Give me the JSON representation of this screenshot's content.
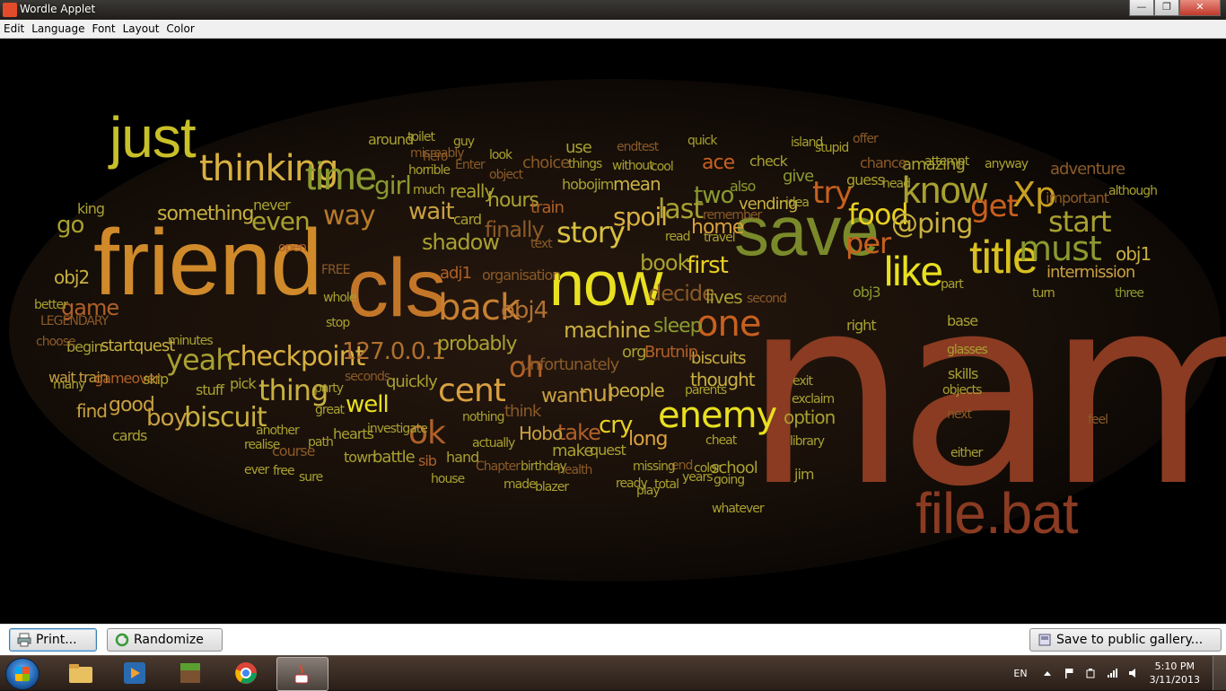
{
  "window": {
    "title": "Wordle Applet",
    "min_label": "—",
    "max_label": "❐",
    "close_label": "✕"
  },
  "menu": [
    "Edit",
    "Language",
    "Font",
    "Layout",
    "Color"
  ],
  "cloud": {
    "words": [
      {
        "text": "name",
        "color": "#8a3b22"
      },
      {
        "text": "friend",
        "color": "#d08a2a"
      },
      {
        "text": "cls",
        "color": "#c47628"
      },
      {
        "text": "now",
        "color": "#e8e020"
      },
      {
        "text": "save",
        "color": "#7a8a2a"
      },
      {
        "text": "just",
        "color": "#c8c028"
      },
      {
        "text": "file.bat",
        "color": "#8a3b22"
      },
      {
        "text": "title",
        "color": "#d8c020"
      },
      {
        "text": "thinking",
        "color": "#d8b040"
      },
      {
        "text": "time",
        "color": "#8a9a30"
      },
      {
        "text": "like",
        "color": "#e8e020"
      },
      {
        "text": "know",
        "color": "#a8a030"
      },
      {
        "text": "back",
        "color": "#c88030"
      },
      {
        "text": "enemy",
        "color": "#e8e020"
      },
      {
        "text": "one",
        "color": "#c8601e"
      },
      {
        "text": "Xp",
        "color": "#c8a020"
      },
      {
        "text": "story",
        "color": "#d8c040"
      },
      {
        "text": "must",
        "color": "#8a9a30"
      },
      {
        "text": "cent",
        "color": "#d8a040"
      },
      {
        "text": "food",
        "color": "#e8d020"
      },
      {
        "text": "checkpoint",
        "color": "#d8b040"
      },
      {
        "text": "thing",
        "color": "#c8b040"
      },
      {
        "text": "yeah",
        "color": "#a8a030"
      },
      {
        "text": "way",
        "color": "#b87a2a"
      },
      {
        "text": "127.0.0.1",
        "color": "#b07030"
      },
      {
        "text": "biscuit",
        "color": "#c8b040"
      },
      {
        "text": "boy",
        "color": "#c8a040"
      },
      {
        "text": "go",
        "color": "#a8a030"
      },
      {
        "text": "game",
        "color": "#b06028"
      },
      {
        "text": "something",
        "color": "#c8b040"
      },
      {
        "text": "even",
        "color": "#a8a030"
      },
      {
        "text": "girl",
        "color": "#8a9a30"
      },
      {
        "text": "wait",
        "color": "#c8a040"
      },
      {
        "text": "shadow",
        "color": "#a8a030"
      },
      {
        "text": "obj4",
        "color": "#b07030"
      },
      {
        "text": "oh",
        "color": "#b06028"
      },
      {
        "text": "probably",
        "color": "#a8a030"
      },
      {
        "text": "machine",
        "color": "#c8b040"
      },
      {
        "text": "spoil",
        "color": "#d8b040"
      },
      {
        "text": "last",
        "color": "#a8a030"
      },
      {
        "text": "book",
        "color": "#a8a030"
      },
      {
        "text": "first",
        "color": "#e8d020"
      },
      {
        "text": "home",
        "color": "#d8a040"
      },
      {
        "text": "try",
        "color": "#c8601e"
      },
      {
        "text": "per",
        "color": "#c8601e"
      },
      {
        "text": "@ping",
        "color": "#c8b040"
      },
      {
        "text": "get",
        "color": "#c8601e"
      },
      {
        "text": "start",
        "color": "#a8a030"
      },
      {
        "text": "adventure",
        "color": "#8a5a28"
      },
      {
        "text": "intermission",
        "color": "#c8a040"
      },
      {
        "text": "obj1",
        "color": "#c8b040"
      },
      {
        "text": "obj2",
        "color": "#c8b040"
      },
      {
        "text": "well",
        "color": "#e8e020"
      },
      {
        "text": "ok",
        "color": "#b06028"
      },
      {
        "text": "cry",
        "color": "#e8d020"
      },
      {
        "text": "people",
        "color": "#c8b040"
      },
      {
        "text": "nul",
        "color": "#c8a040"
      },
      {
        "text": "want",
        "color": "#c8a040"
      },
      {
        "text": "take",
        "color": "#b06028"
      },
      {
        "text": "long",
        "color": "#d8a040"
      },
      {
        "text": "Hobo",
        "color": "#c8a040"
      },
      {
        "text": "find",
        "color": "#c8a040"
      },
      {
        "text": "good",
        "color": "#c8a040"
      },
      {
        "text": "hours",
        "color": "#a8a030"
      },
      {
        "text": "finally",
        "color": "#8a5a28"
      },
      {
        "text": "decide",
        "color": "#8a5a28"
      },
      {
        "text": "lives",
        "color": "#a8a030"
      },
      {
        "text": "sleep",
        "color": "#8a9a30"
      },
      {
        "text": "biscuits",
        "color": "#c8b040"
      },
      {
        "text": "thought",
        "color": "#c8b040"
      },
      {
        "text": "option",
        "color": "#a8a030"
      },
      {
        "text": "mean",
        "color": "#c8b040"
      },
      {
        "text": "two",
        "color": "#8a9a30"
      },
      {
        "text": "ace",
        "color": "#c8601e"
      },
      {
        "text": "vending",
        "color": "#c8b040"
      },
      {
        "text": "give",
        "color": "#8a9a30"
      },
      {
        "text": "really",
        "color": "#a8a030"
      },
      {
        "text": "train",
        "color": "#b06028"
      },
      {
        "text": "choice",
        "color": "#8a5a28"
      },
      {
        "text": "amazing",
        "color": "#a8a030"
      },
      {
        "text": "around",
        "color": "#a8a030"
      },
      {
        "text": "wait train",
        "color": "#c8a040"
      },
      {
        "text": "gameover",
        "color": "#b06028"
      },
      {
        "text": "skip",
        "color": "#a8a030"
      },
      {
        "text": "stuff",
        "color": "#a8a030"
      },
      {
        "text": "pick",
        "color": "#a8a030"
      },
      {
        "text": "begin",
        "color": "#a8a030"
      },
      {
        "text": "startquest",
        "color": "#c8b040"
      },
      {
        "text": "cards",
        "color": "#a8a030"
      },
      {
        "text": "quickly",
        "color": "#a8a030"
      },
      {
        "text": "investigate",
        "color": "#a8a030"
      },
      {
        "text": "battle",
        "color": "#a8a030"
      },
      {
        "text": "town",
        "color": "#a8a030"
      },
      {
        "text": "hearts",
        "color": "#a8a030"
      },
      {
        "text": "unfortunately",
        "color": "#8a5a28"
      },
      {
        "text": "org",
        "color": "#a8a030"
      },
      {
        "text": "Brutnip",
        "color": "#b06028"
      },
      {
        "text": "make",
        "color": "#a8a030"
      },
      {
        "text": "quest",
        "color": "#a8a030"
      },
      {
        "text": "school",
        "color": "#a8a030"
      },
      {
        "text": "jim",
        "color": "#a8a030"
      },
      {
        "text": "base",
        "color": "#a8a030"
      },
      {
        "text": "skills",
        "color": "#a8a030"
      },
      {
        "text": "right",
        "color": "#a8a030"
      },
      {
        "text": "three",
        "color": "#8a9a30"
      },
      {
        "text": "turn",
        "color": "#a8a030"
      },
      {
        "text": "guess",
        "color": "#a8a030"
      },
      {
        "text": "chance",
        "color": "#8a5a28"
      },
      {
        "text": "obj3",
        "color": "#8a9a30"
      },
      {
        "text": "also",
        "color": "#8a9a30"
      },
      {
        "text": "check",
        "color": "#a8a030"
      },
      {
        "text": "card",
        "color": "#a8a030"
      },
      {
        "text": "adj1",
        "color": "#b06028"
      },
      {
        "text": "hobojim",
        "color": "#a8a030"
      },
      {
        "text": "organisation",
        "color": "#8a5a28"
      },
      {
        "text": "never",
        "color": "#a8a030"
      },
      {
        "text": "king",
        "color": "#a8a030"
      },
      {
        "text": "although",
        "color": "#a8a030"
      },
      {
        "text": "important",
        "color": "#8a5a28"
      },
      {
        "text": "sib",
        "color": "#b06028"
      },
      {
        "text": "hand",
        "color": "#a8a030"
      },
      {
        "text": "think",
        "color": "#8a5a28"
      },
      {
        "text": "nothing",
        "color": "#a8a030"
      },
      {
        "text": "actually",
        "color": "#a8a030"
      },
      {
        "text": "path",
        "color": "#a8a030"
      },
      {
        "text": "party",
        "color": "#a8a030"
      },
      {
        "text": "seconds",
        "color": "#8a5a28"
      },
      {
        "text": "great",
        "color": "#a8a030"
      },
      {
        "text": "exit",
        "color": "#a8a030"
      },
      {
        "text": "next",
        "color": "#8a5a28"
      },
      {
        "text": "either",
        "color": "#a8a030"
      },
      {
        "text": "library",
        "color": "#a8a030"
      },
      {
        "text": "feel",
        "color": "#8a5a28"
      },
      {
        "text": "another",
        "color": "#a8a030"
      },
      {
        "text": "course",
        "color": "#8a5a28"
      },
      {
        "text": "parents",
        "color": "#a8a030"
      },
      {
        "text": "years",
        "color": "#a8a030"
      },
      {
        "text": "horrible",
        "color": "#a8a030"
      },
      {
        "text": "hero",
        "color": "#8a5a28"
      },
      {
        "text": "use",
        "color": "#a8a030"
      },
      {
        "text": "look",
        "color": "#a8a030"
      },
      {
        "text": "much",
        "color": "#a8a030"
      },
      {
        "text": "misreably",
        "color": "#8a5a28"
      },
      {
        "text": "object",
        "color": "#8a5a28"
      },
      {
        "text": "without",
        "color": "#a8a030"
      },
      {
        "text": "things",
        "color": "#a8a030"
      },
      {
        "text": "attempt",
        "color": "#a8a030"
      },
      {
        "text": "anyway",
        "color": "#a8a030"
      },
      {
        "text": "second",
        "color": "#8a5a28"
      },
      {
        "text": "glasses",
        "color": "#a8a030"
      },
      {
        "text": "part",
        "color": "#a8a030"
      },
      {
        "text": "idea",
        "color": "#a8a030"
      },
      {
        "text": "cheat",
        "color": "#a8a030"
      },
      {
        "text": "end",
        "color": "#8a5a28"
      },
      {
        "text": "color",
        "color": "#a8a030"
      },
      {
        "text": "health",
        "color": "#8a5a28"
      },
      {
        "text": "made",
        "color": "#a8a030"
      },
      {
        "text": "ready",
        "color": "#a8a030"
      },
      {
        "text": "total",
        "color": "#a8a030"
      },
      {
        "text": "play",
        "color": "#a8a030"
      },
      {
        "text": "free",
        "color": "#a8a030"
      },
      {
        "text": "sure",
        "color": "#a8a030"
      },
      {
        "text": "minutes",
        "color": "#a8a030"
      },
      {
        "text": "choose",
        "color": "#8a5a28"
      },
      {
        "text": "many",
        "color": "#a8a030"
      },
      {
        "text": "LEGENDARY",
        "color": "#8a5a28"
      },
      {
        "text": "Enter",
        "color": "#8a5a28"
      },
      {
        "text": "whole",
        "color": "#a8a030"
      },
      {
        "text": "stop",
        "color": "#a8a030"
      },
      {
        "text": "FREE",
        "color": "#8a5a28"
      },
      {
        "text": "open",
        "color": "#b06028"
      },
      {
        "text": "toilet",
        "color": "#a8a030"
      },
      {
        "text": "guy",
        "color": "#a8a030"
      },
      {
        "text": "endtest",
        "color": "#8a5a28"
      },
      {
        "text": "cool",
        "color": "#a8a030"
      },
      {
        "text": "quick",
        "color": "#a8a030"
      },
      {
        "text": "island",
        "color": "#a8a030"
      },
      {
        "text": "stupid",
        "color": "#a8a030"
      },
      {
        "text": "offer",
        "color": "#8a5a28"
      },
      {
        "text": "head",
        "color": "#a8a030"
      },
      {
        "text": "remember",
        "color": "#8a5a28"
      },
      {
        "text": "travel",
        "color": "#a8a030"
      },
      {
        "text": "read",
        "color": "#a8a030"
      },
      {
        "text": "text",
        "color": "#8a5a28"
      },
      {
        "text": "Chapter",
        "color": "#8a5a28"
      },
      {
        "text": "birthday",
        "color": "#a8a030"
      },
      {
        "text": "blazer",
        "color": "#a8a030"
      },
      {
        "text": "house",
        "color": "#a8a030"
      },
      {
        "text": "ever",
        "color": "#a8a030"
      },
      {
        "text": "realise",
        "color": "#a8a030"
      },
      {
        "text": "going",
        "color": "#a8a030"
      },
      {
        "text": "whatever",
        "color": "#a8a030"
      },
      {
        "text": "missing",
        "color": "#a8a030"
      },
      {
        "text": "exclaim",
        "color": "#a8a030"
      },
      {
        "text": "objects",
        "color": "#a8a030"
      },
      {
        "text": "better",
        "color": "#a8a030"
      }
    ]
  },
  "bottom": {
    "print_label": "Print...",
    "randomize_label": "Randomize",
    "gallery_label": "Save to public gallery..."
  },
  "taskbar": {
    "lang": "EN",
    "time": "5:10 PM",
    "date": "3/11/2013"
  }
}
